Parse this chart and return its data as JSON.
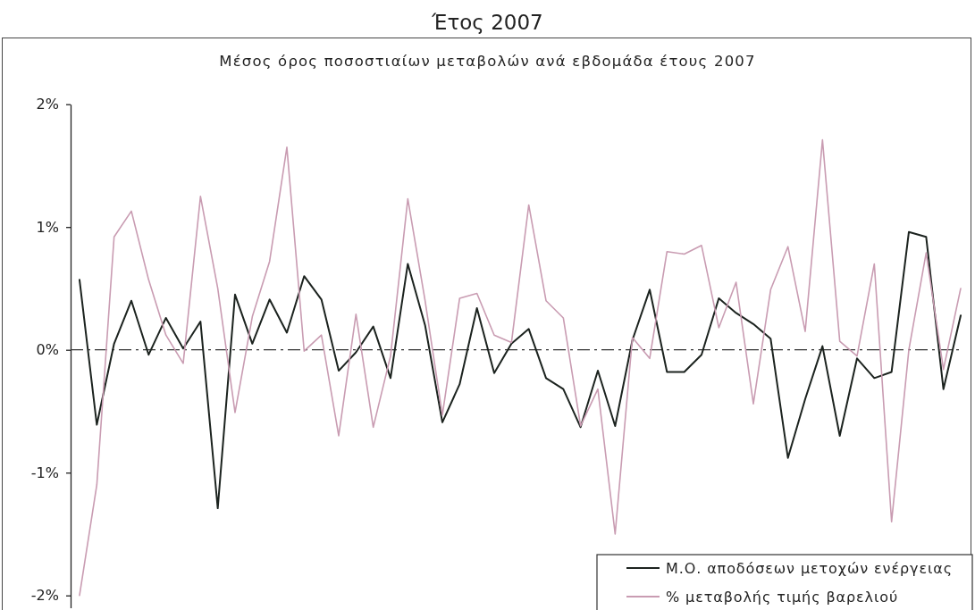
{
  "chart_data": {
    "type": "line",
    "title": "Έτος 2007",
    "subtitle": "Μέσος όρος ποσοστιαίων μεταβολών ανά εβδομάδα έτους 2007",
    "categories": [
      null,
      null,
      null,
      null,
      null,
      null,
      null,
      null,
      null,
      null,
      null,
      null,
      null,
      null,
      null,
      null,
      null,
      null,
      null,
      null,
      null,
      null,
      null,
      null,
      null,
      null,
      null,
      null,
      null,
      null,
      null,
      null,
      null,
      null,
      null,
      null,
      null,
      null,
      null,
      null,
      null,
      null,
      null,
      null,
      null,
      null,
      null,
      null,
      null,
      null,
      null,
      null
    ],
    "series": [
      {
        "name": "Μ.Ο. αποδόσεων μετοχών ενέργειας",
        "color": "#1c231f",
        "values": [
          0.57,
          -0.61,
          0.05,
          0.4,
          -0.04,
          0.26,
          0.01,
          0.23,
          -1.29,
          0.45,
          0.05,
          0.41,
          0.14,
          0.6,
          0.41,
          -0.17,
          -0.02,
          0.19,
          -0.23,
          0.7,
          0.2,
          -0.59,
          -0.28,
          0.34,
          -0.19,
          0.05,
          0.17,
          -0.23,
          -0.32,
          -0.63,
          -0.17,
          -0.62,
          0.08,
          0.49,
          -0.18,
          -0.18,
          -0.04,
          0.42,
          0.3,
          0.21,
          0.09,
          -0.88,
          -0.4,
          0.03,
          -0.7,
          -0.07,
          -0.23,
          -0.18,
          0.96,
          0.92,
          -0.32,
          0.28
        ]
      },
      {
        "name": "% μεταβολής τιμής βαρελιού",
        "color": "#c99cb2",
        "values": [
          -2.0,
          -1.1,
          0.92,
          1.13,
          0.57,
          0.12,
          -0.11,
          1.25,
          0.5,
          -0.51,
          0.27,
          0.72,
          1.65,
          -0.01,
          0.12,
          -0.7,
          0.29,
          -0.63,
          -0.05,
          1.23,
          0.4,
          -0.53,
          0.42,
          0.46,
          0.12,
          0.06,
          1.18,
          0.4,
          0.26,
          -0.62,
          -0.32,
          -1.5,
          0.1,
          -0.07,
          0.8,
          0.78,
          0.85,
          0.18,
          0.55,
          -0.44,
          0.49,
          0.84,
          0.15,
          1.71,
          0.07,
          -0.05,
          0.7,
          -1.4,
          0.0,
          0.79,
          -0.16,
          0.5
        ]
      }
    ],
    "ylim": [
      -2.1,
      2
    ],
    "yticks": [
      {
        "value": -2,
        "label": "-2%"
      },
      {
        "value": -1,
        "label": "-1%"
      },
      {
        "value": 0,
        "label": "0%"
      },
      {
        "value": 1,
        "label": "1%"
      },
      {
        "value": 2,
        "label": "2%"
      }
    ],
    "tick_labels": "y",
    "legend": "bottom right",
    "ref_lines": [
      {
        "axis": "y",
        "value": 0,
        "line_style": "dashed",
        "color": "#333333"
      }
    ]
  }
}
